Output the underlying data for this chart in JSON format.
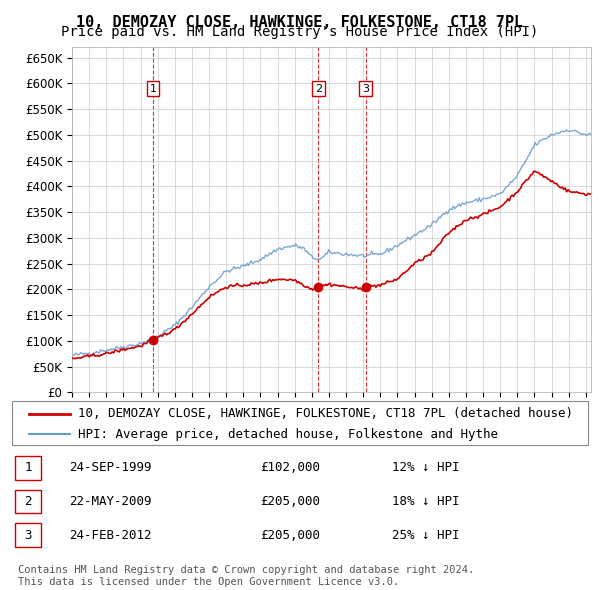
{
  "title": "10, DEMOZAY CLOSE, HAWKINGE, FOLKESTONE, CT18 7PL",
  "subtitle": "Price paid vs. HM Land Registry's House Price Index (HPI)",
  "ylabel_values": [
    0,
    50000,
    100000,
    150000,
    200000,
    250000,
    300000,
    350000,
    400000,
    450000,
    500000,
    550000,
    600000,
    650000
  ],
  "ylim": [
    0,
    670000
  ],
  "xlim_start": 1995.0,
  "xlim_end": 2025.3,
  "legend_line1": "10, DEMOZAY CLOSE, HAWKINGE, FOLKESTONE, CT18 7PL (detached house)",
  "legend_line2": "HPI: Average price, detached house, Folkestone and Hythe",
  "sale1_date": 1999.73,
  "sale1_price": 102000,
  "sale1_label": "1",
  "sale2_date": 2009.39,
  "sale2_price": 205000,
  "sale2_label": "2",
  "sale3_date": 2012.15,
  "sale3_price": 205000,
  "sale3_label": "3",
  "table_rows": [
    [
      "1",
      "24-SEP-1999",
      "£102,000",
      "12% ↓ HPI"
    ],
    [
      "2",
      "22-MAY-2009",
      "£205,000",
      "18% ↓ HPI"
    ],
    [
      "3",
      "24-FEB-2012",
      "£205,000",
      "25% ↓ HPI"
    ]
  ],
  "footnote": "Contains HM Land Registry data © Crown copyright and database right 2024.\nThis data is licensed under the Open Government Licence v3.0.",
  "line_color_red": "#cc0000",
  "line_color_blue": "#6699cc",
  "bg_color": "#ffffff",
  "grid_color": "#cccccc",
  "vline_color": "#cc0000",
  "marker_color": "#cc0000",
  "title_fontsize": 11,
  "subtitle_fontsize": 10,
  "tick_fontsize": 8.5,
  "legend_fontsize": 9,
  "table_fontsize": 9
}
